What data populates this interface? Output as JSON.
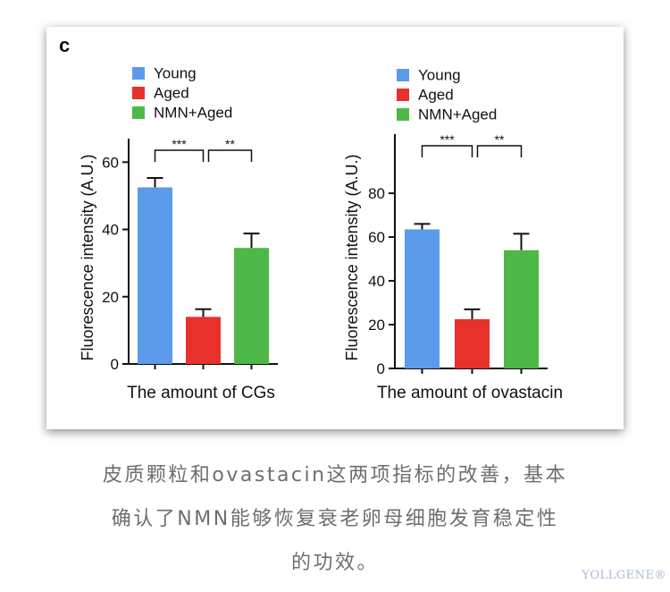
{
  "panel_label": "c",
  "chart_data": [
    {
      "type": "bar",
      "xlabel": "The amount of CGs",
      "ylabel": "Fluorescence intensity (A.U.)",
      "categories": [
        "Young",
        "Aged",
        "NMN+Aged"
      ],
      "values": [
        52.5,
        14,
        34.5
      ],
      "errors": [
        2.8,
        2.3,
        4.3
      ],
      "ylim": [
        0,
        67
      ],
      "yticks": [
        0,
        20,
        40,
        60
      ],
      "legend": [
        "Young",
        "Aged",
        "NMN+Aged"
      ],
      "colors": [
        "#5b9bea",
        "#e8302d",
        "#4db847"
      ],
      "significance": [
        {
          "from": 0,
          "to": 1,
          "label": "***"
        },
        {
          "from": 1,
          "to": 2,
          "label": "**"
        }
      ]
    },
    {
      "type": "bar",
      "xlabel": "The amount of ovastacin",
      "ylabel": "Fluorescence intensity (A.U.)",
      "categories": [
        "Young",
        "Aged",
        "NMN+Aged"
      ],
      "values": [
        63.5,
        22.5,
        54
      ],
      "errors": [
        2.5,
        4.5,
        7.5
      ],
      "ylim": [
        0,
        107
      ],
      "yticks": [
        0,
        20,
        40,
        60,
        80
      ],
      "legend": [
        "Young",
        "Aged",
        "NMN+Aged"
      ],
      "colors": [
        "#5b9bea",
        "#e8302d",
        "#4db847"
      ],
      "significance": [
        {
          "from": 0,
          "to": 1,
          "label": "***"
        },
        {
          "from": 1,
          "to": 2,
          "label": "**"
        }
      ]
    }
  ],
  "caption": {
    "line1": "皮质颗粒和ovastacin这两项指标的改善，基本",
    "line2": "确认了NMN能够恢复衰老卵母细胞发育稳定性",
    "line3": "的功效。"
  },
  "brand": "YOLLGENE®"
}
